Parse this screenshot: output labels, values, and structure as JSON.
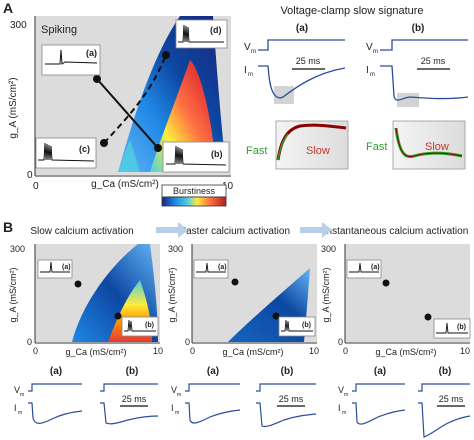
{
  "panel_a": {
    "letter": "A",
    "map_title": "Spiking",
    "y_tick_top": "300",
    "y_tick_bottom": "0",
    "x_tick_left": "0",
    "x_tick_right": "10",
    "y_axis_label": "g_A (mS/cm²)",
    "x_axis_label": "g_Ca (mS/cm²)",
    "colorbar_label": "Burstiness",
    "inset_labels": [
      "(a)",
      "(b)",
      "(c)",
      "(d)"
    ],
    "vc_title": "Voltage-clamp slow signature",
    "vc_col_labels": [
      "(a)",
      "(b)"
    ],
    "vm_label": "V",
    "vm_sub": "m",
    "im_label": "I",
    "im_sub": "m",
    "scale_label": "25 ms",
    "fast_label": "Fast",
    "slow_label": "Slow"
  },
  "panel_b": {
    "letter": "B",
    "step_titles": [
      "Slow calcium activation",
      "Faster calcium activation",
      "Instantaneous calcium activation"
    ],
    "y_tick_top": "300",
    "y_tick_bottom": "0",
    "x_tick_left": "0",
    "x_tick_right": "10",
    "y_axis_label": "g_A (mS/cm²)",
    "x_axis_label": "g_Ca (mS/cm²)",
    "inset_labels": [
      "(a)",
      "(b)"
    ],
    "trace_labels": [
      "(a)",
      "(b)"
    ],
    "scale_label": "25 ms"
  },
  "colors": {
    "map_background": "#dcdcdc",
    "trace_blue": "#2a4d9b",
    "fast_green": "#2ca02c",
    "slow_red": "#c0392b",
    "arrow_light_blue": "#b8cfe8"
  }
}
